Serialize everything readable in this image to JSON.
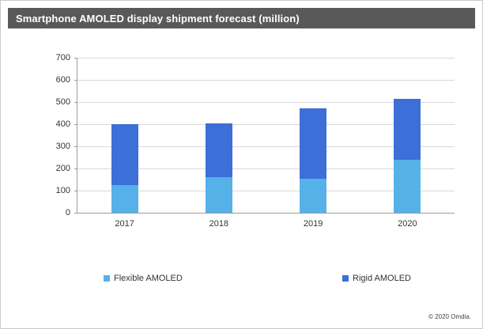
{
  "title": "Smartphone AMOLED display shipment forecast (million)",
  "footer": "© 2020 Omdia.",
  "colors": {
    "title_bar": "#595959",
    "flexible": "#56B1E8",
    "rigid": "#3C6FD7",
    "gridline": "#d9d9d9"
  },
  "chart_data": {
    "type": "bar",
    "stacked": true,
    "title": "Smartphone AMOLED display shipment forecast (million)",
    "categories": [
      "2017",
      "2018",
      "2019",
      "2020"
    ],
    "series": [
      {
        "name": "Flexible AMOLED",
        "color": "#56B1E8",
        "values": [
          125,
          160,
          155,
          240
        ]
      },
      {
        "name": "Rigid AMOLED",
        "color": "#3C6FD7",
        "values": [
          275,
          245,
          315,
          275
        ]
      }
    ],
    "totals": [
      400,
      405,
      470,
      515
    ],
    "xlabel": "",
    "ylabel": "",
    "ylim": [
      0,
      700
    ],
    "yticks": [
      0,
      100,
      200,
      300,
      400,
      500,
      600,
      700
    ],
    "grid": true,
    "legend_position": "bottom"
  }
}
